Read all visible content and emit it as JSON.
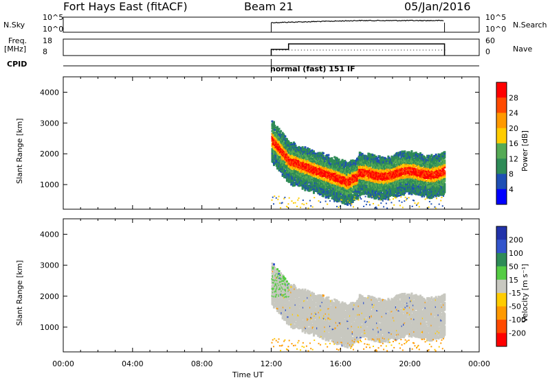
{
  "header": {
    "station": "Fort Hays East (fitACF)",
    "beam": "Beam 21",
    "date": "05/Jan/2016"
  },
  "panels": {
    "nsky": {
      "left_label": "N.Sky",
      "left_ticks": [
        "10^5",
        "10^0"
      ],
      "right_ticks": [
        "10^5",
        "10^0"
      ],
      "right_label": "N.Search"
    },
    "freq": {
      "left_label_1": "Freq.",
      "left_label_2": "[MHz]",
      "left_ticks": [
        "18",
        "8"
      ],
      "right_ticks": [
        "60",
        "0"
      ],
      "right_label": "Nave"
    },
    "cpid": {
      "label": "CPID",
      "mode": "normal (fast) 151 IF"
    }
  },
  "chart_data": [
    {
      "type": "heatmap",
      "name": "power",
      "ylabel": "Slant Range [km]",
      "xlabel": "Time UT",
      "yticks": [
        1000,
        2000,
        3000,
        4000
      ],
      "ylim": [
        200,
        4500
      ],
      "xlim": [
        0,
        24
      ],
      "colorbar_label": "Power [dB]",
      "colorbar_ticks": [
        "28",
        "24",
        "20",
        "16",
        "12",
        "8",
        "4"
      ],
      "colorbar_colors": [
        "#ff0000",
        "#ff4a00",
        "#ff9900",
        "#ffcc00",
        "#55aa55",
        "#2e8b57",
        "#1e4fb4",
        "#0000ff"
      ],
      "data_time_range": [
        12.0,
        22.0
      ]
    },
    {
      "type": "heatmap",
      "name": "velocity",
      "ylabel": "Slant Range [km]",
      "xlabel": "Time UT",
      "yticks": [
        1000,
        2000,
        3000,
        4000
      ],
      "ylim": [
        200,
        4500
      ],
      "xlim": [
        0,
        24
      ],
      "colorbar_label": "Velocity [m s⁻¹]",
      "colorbar_ticks": [
        "200",
        "100",
        "50",
        "15",
        "-15",
        "-50",
        "-100",
        "-200"
      ],
      "colorbar_colors": [
        "#2233aa",
        "#3355cc",
        "#2e8b57",
        "#55cc44",
        "#c8c8c0",
        "#ffcc00",
        "#ff9900",
        "#ff4a00",
        "#ff0000"
      ],
      "data_time_range": [
        12.0,
        22.0
      ]
    }
  ],
  "time_axis": {
    "label": "Time UT",
    "ticks": [
      "00:00",
      "04:00",
      "08:00",
      "12:00",
      "16:00",
      "20:00",
      "00:00"
    ]
  },
  "colors": {
    "ground_scatter": "#c8c8c0"
  }
}
